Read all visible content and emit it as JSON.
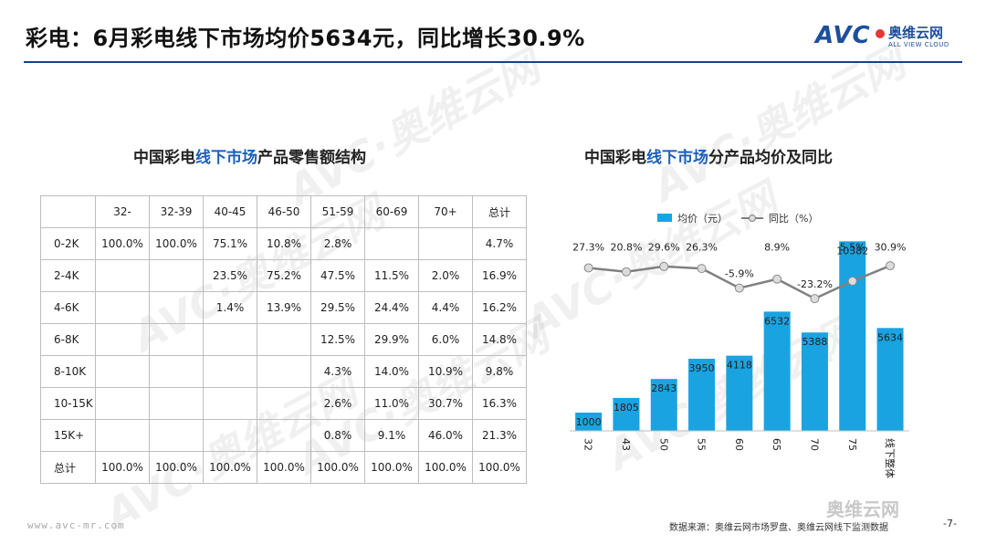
{
  "header": {
    "title": "彩电：6月彩电线下市场均价5634元，同比增长30.9%"
  },
  "logo": {
    "text": "AVC",
    "cn": "奥维云网",
    "en": "ALL VIEW CLOUD"
  },
  "watermark": {
    "text": "AVC·奥维云网"
  },
  "left_panel": {
    "title_pre": "中国彩电",
    "title_hl": "线下市场",
    "title_post": "产品零售额结构"
  },
  "table": {
    "columns": [
      "32-",
      "32-39",
      "40-45",
      "46-50",
      "51-59",
      "60-69",
      "70+",
      "总计"
    ],
    "rows": [
      {
        "label": "0-2K",
        "cells": [
          "100.0%",
          "100.0%",
          "75.1%",
          "10.8%",
          "2.8%",
          "",
          "",
          "4.7%"
        ]
      },
      {
        "label": "2-4K",
        "cells": [
          "",
          "",
          "23.5%",
          "75.2%",
          "47.5%",
          "11.5%",
          "2.0%",
          "16.9%"
        ]
      },
      {
        "label": "4-6K",
        "cells": [
          "",
          "",
          "1.4%",
          "13.9%",
          "29.5%",
          "24.4%",
          "4.4%",
          "16.2%"
        ]
      },
      {
        "label": "6-8K",
        "cells": [
          "",
          "",
          "",
          "",
          "12.5%",
          "29.9%",
          "6.0%",
          "14.8%"
        ]
      },
      {
        "label": "8-10K",
        "cells": [
          "",
          "",
          "",
          "",
          "4.3%",
          "14.0%",
          "10.9%",
          "9.8%"
        ]
      },
      {
        "label": "10-15K",
        "cells": [
          "",
          "",
          "",
          "",
          "2.6%",
          "11.0%",
          "30.7%",
          "16.3%"
        ]
      },
      {
        "label": "15K+",
        "cells": [
          "",
          "",
          "",
          "",
          "0.8%",
          "9.1%",
          "46.0%",
          "21.3%"
        ]
      },
      {
        "label": "总计",
        "cells": [
          "100.0%",
          "100.0%",
          "100.0%",
          "100.0%",
          "100.0%",
          "100.0%",
          "100.0%",
          "100.0%"
        ]
      }
    ]
  },
  "right_panel": {
    "title_pre": "中国彩电",
    "title_hl": "线下市场",
    "title_post": "分产品均价及同比"
  },
  "chart_data": {
    "type": "bar",
    "title": "中国彩电线下市场分产品均价及同比",
    "categories": [
      "32",
      "43",
      "50",
      "55",
      "60",
      "65",
      "70",
      "75",
      "线下整体"
    ],
    "series": [
      {
        "name": "均价（元）",
        "type": "bar",
        "color": "#1aa3e1",
        "values": [
          1000,
          1805,
          2843,
          3950,
          4118,
          6532,
          5388,
          10382,
          5634
        ]
      },
      {
        "name": "同比（%）",
        "type": "line",
        "color": "#808080",
        "values": [
          27.3,
          20.8,
          29.6,
          26.3,
          -5.9,
          8.9,
          -23.2,
          5.5,
          30.9
        ],
        "labels": [
          "27.3%",
          "20.8%",
          "29.6%",
          "26.3%",
          "-5.9%",
          "8.9%",
          "-23.2%",
          "5.5%",
          "30.9%"
        ]
      }
    ],
    "ylim_bar": [
      0,
      10500
    ],
    "ylim_line": [
      -110,
      40
    ],
    "legend": "top"
  },
  "footer": {
    "url": "www.avc-mr.com",
    "source": "数据来源：奥维云网市场罗盘、奥维云网线下监测数据",
    "page": "-7-",
    "wechat": "奥维云网"
  }
}
